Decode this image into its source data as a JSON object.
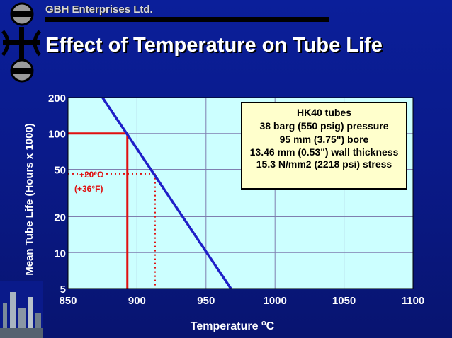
{
  "company": "GBH Enterprises Ltd.",
  "title": "Effect of Temperature on Tube Life",
  "chart_data": {
    "type": "line",
    "title": "Effect of Temperature on Tube Life",
    "xlabel": "Temperature oC",
    "ylabel": "Mean Tube Life (Hours x 1000)",
    "x_ticks": [
      850,
      900,
      950,
      1000,
      1050,
      1100
    ],
    "y_ticks": [
      5,
      10,
      20,
      50,
      100,
      200
    ],
    "xlim": [
      850,
      1100
    ],
    "ylim": [
      5,
      200
    ],
    "y_scale": "log",
    "grid": true,
    "series": [
      {
        "x": [
          875,
          968
        ],
        "y": [
          200,
          5
        ]
      }
    ],
    "reference_lines": {
      "solid": {
        "x": 893,
        "y": 100
      },
      "dotted": {
        "x": 913,
        "y": 46
      }
    },
    "annotations": [
      "+20°C",
      "(+36°F)"
    ],
    "note_lines": [
      "HK40 tubes",
      "38 barg (550 psig) pressure",
      "95 mm (3.75\") bore",
      "13.46 mm (0.53\") wall thickness",
      "15.3 N/mm2 (2218 psi) stress"
    ],
    "colors": {
      "plot_bg": "#ccffff",
      "line": "#1f1fc8",
      "ref": "#e01010",
      "grid": "#7f7fb0"
    }
  }
}
